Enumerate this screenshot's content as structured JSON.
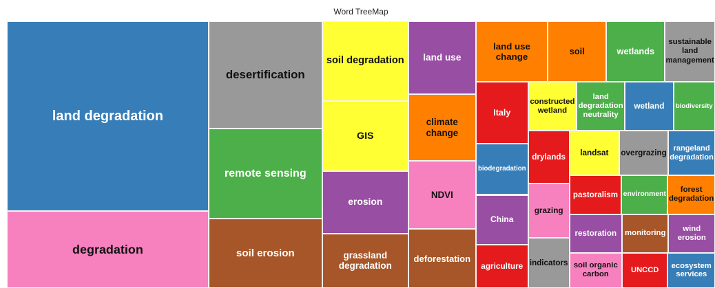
{
  "chart_data": {
    "type": "treemap",
    "title": "Word TreeMap",
    "categories": [
      "land degradation",
      "degradation",
      "desertification",
      "remote sensing",
      "soil erosion",
      "soil degradation",
      "GIS",
      "erosion",
      "grassland degradation",
      "land use",
      "climate change",
      "NDVI",
      "deforestation",
      "land use change",
      "soil",
      "wetlands",
      "sustainable land management",
      "Italy",
      "biodegradation",
      "China",
      "agriculture",
      "constructed wetland",
      "land degradation neutrality",
      "wetland",
      "biodiversity",
      "drylands",
      "grazing",
      "indicators",
      "landsat",
      "overgrazing",
      "rangeland degradation",
      "pastoralism",
      "environment",
      "forest degradation",
      "restoration",
      "monitoring",
      "wind erosion",
      "soil organic carbon",
      "UNCCD",
      "ecosystem services"
    ],
    "values": [
      809,
      328,
      257,
      216,
      167,
      145,
      128,
      114,
      99,
      104,
      95,
      97,
      84,
      92,
      75,
      75,
      64,
      68,
      57,
      55,
      48,
      50,
      50,
      50,
      43,
      46,
      47,
      44,
      47,
      46,
      44,
      43,
      38,
      39,
      43,
      38,
      38,
      39,
      34,
      35
    ],
    "colors": [
      "#377eb8",
      "#f781bf",
      "#999999",
      "#4daf4a",
      "#a65628",
      "#ffff33",
      "#ffff33",
      "#984ea3",
      "#a65628",
      "#984ea3",
      "#ff7f00",
      "#f781bf",
      "#a65628",
      "#ff7f00",
      "#ff7f00",
      "#4daf4a",
      "#999999",
      "#e41a1c",
      "#377eb8",
      "#984ea3",
      "#e41a1c",
      "#ffff33",
      "#4daf4a",
      "#377eb8",
      "#4daf4a",
      "#e41a1c",
      "#f781bf",
      "#999999",
      "#ffff33",
      "#999999",
      "#377eb8",
      "#e41a1c",
      "#4daf4a",
      "#ff7f00",
      "#984ea3",
      "#a65628",
      "#984ea3",
      "#f781bf",
      "#e41a1c",
      "#377eb8"
    ]
  }
}
